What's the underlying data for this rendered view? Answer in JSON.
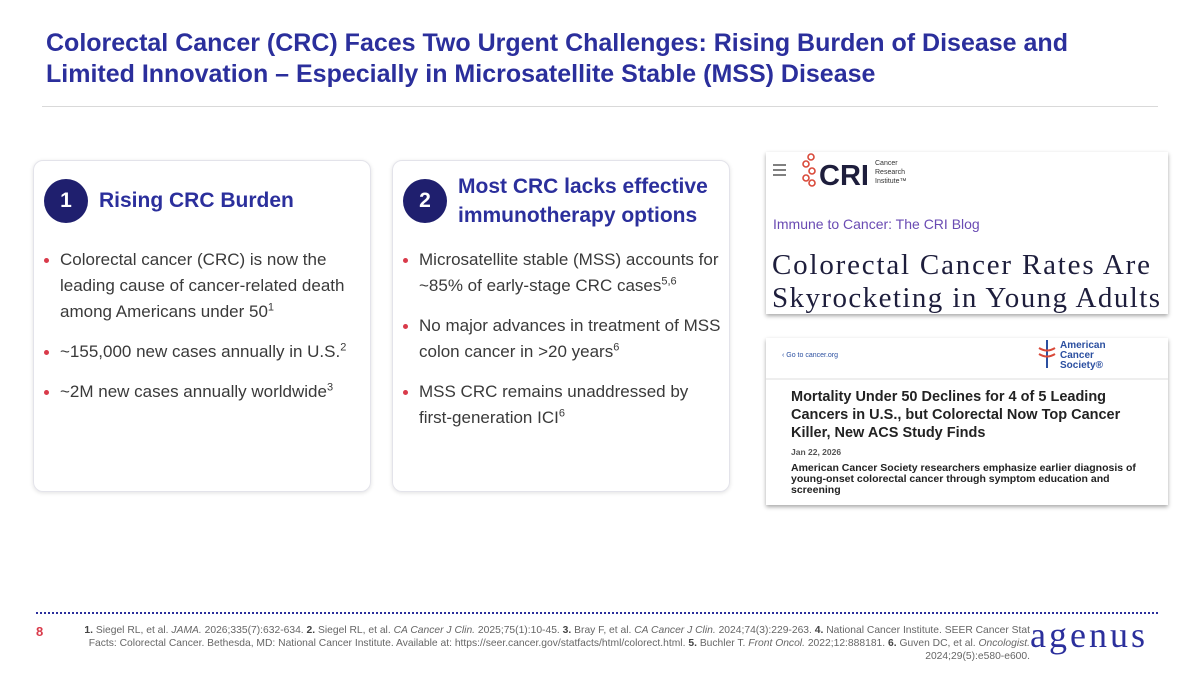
{
  "header": {
    "title_lines": [
      "Colorectal Cancer (CRC) Faces Two Urgent Challenges: Rising Burden of Disease and",
      "Limited Innovation – Especially in Microsatellite Stable (MSS) Disease"
    ]
  },
  "cards": [
    {
      "number": "1",
      "heading_lines": [
        "Rising CRC Burden"
      ],
      "bullets": [
        {
          "text": "Colorectal cancer (CRC) is now the leading cause of cancer-related death among Americans under 50",
          "sup": "1"
        },
        {
          "text": "~155,000 new cases annually in U.S.",
          "sup": "2"
        },
        {
          "text": "~2M new cases annually worldwide",
          "sup": "3"
        }
      ]
    },
    {
      "number": "2",
      "heading_lines": [
        "Most CRC lacks effective",
        "immunotherapy options"
      ],
      "bullets": [
        {
          "text": "Microsatellite stable (MSS) accounts for ~85% of early-stage CRC cases",
          "sup": "5,6"
        },
        {
          "text": "No major advances in treatment of MSS colon cancer in >20 years",
          "sup": "6"
        },
        {
          "text": "MSS CRC remains unaddressed by first-generation ICI",
          "sup": "6"
        }
      ]
    }
  ],
  "cri_blog": {
    "logo": "CRI",
    "logo_caption_lines": [
      "Cancer",
      "Research",
      "Institute™"
    ],
    "blog_name": "Immune to Cancer: The CRI Blog",
    "headline_lines": [
      "Colorectal Cancer Rates Are",
      "Skyrocketing in Young Adults"
    ]
  },
  "acs_news": {
    "back_link": "‹ Go to cancer.org",
    "logo_lines": [
      "American",
      "Cancer",
      "Society®"
    ],
    "headline_lines": [
      "Mortality Under 50 Declines for 4 of 5 Leading",
      "Cancers in U.S., but Colorectal Now Top Cancer",
      "Killer, New ACS Study Finds"
    ],
    "date": "Jan 22, 2026",
    "subhead": "American Cancer Society researchers emphasize earlier diagnosis of young-onset colorectal cancer through symptom education and screening"
  },
  "footer": {
    "page_number": "8",
    "logo": "agenus",
    "references": [
      {
        "number": "1.",
        "authors": "Siegel RL, et al.",
        "journal": "JAMA.",
        "details": "2026;335(7):632-634."
      },
      {
        "number": "2.",
        "authors": "Siegel RL, et al.",
        "journal": "CA Cancer J Clin.",
        "details": "2025;75(1):10-45."
      },
      {
        "number": "3.",
        "authors": "Bray F, et al.",
        "journal": "CA Cancer J Clin.",
        "details": "2024;74(3):229-263."
      },
      {
        "number": "4.",
        "authors": "National Cancer Institute. SEER Cancer Stat Facts: Colorectal Cancer. Bethesda, MD: National Cancer Institute. Available at: https://seer.cancer.gov/statfacts/html/colorect.html."
      },
      {
        "number": "5.",
        "authors": "Buchler T.",
        "journal": "Front Oncol.",
        "details": "2022;12:888181."
      },
      {
        "number": "6.",
        "authors": "Guven DC, et al.",
        "journal": "Oncologist.",
        "details": "2024;29(5):e580-e600."
      }
    ]
  }
}
